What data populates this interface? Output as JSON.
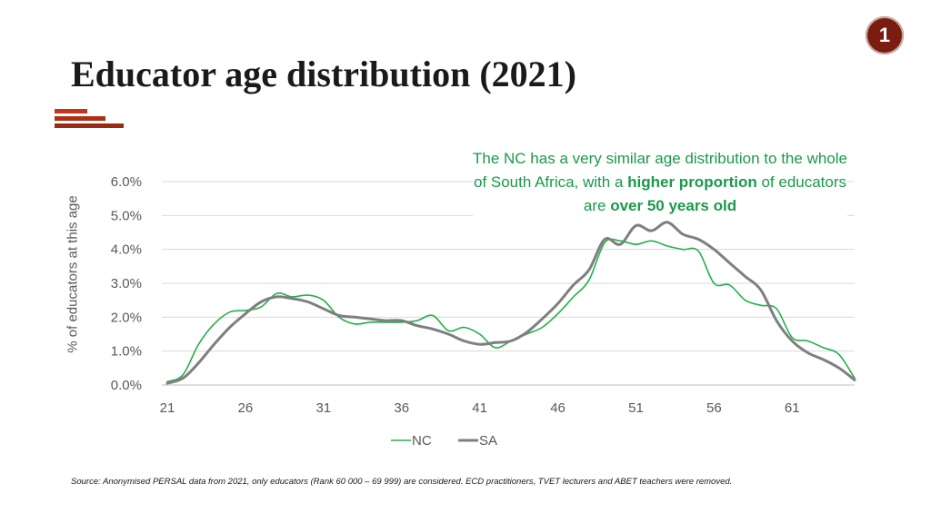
{
  "slide_number": "1",
  "title": "Educator age distribution (2021)",
  "annotation": {
    "part1": "The NC has a very similar age distribution to the whole of South Africa, with a ",
    "bold1": "higher proportion",
    "part2": " of educators are ",
    "bold2": "over 50 years old"
  },
  "source": "Source: Anonymised PERSAL data from 2021, only educators (Rank 60 000 – 69 999) are considered. ECD practitioners, TVET lecturers and ABET teachers were removed.",
  "colors": {
    "nc": "#22b04b",
    "sa": "#7f7f7f",
    "accent": "#a82a10",
    "annotation": "#1a9a4a",
    "grid": "#d9d9d9"
  },
  "chart_data": {
    "type": "line",
    "title": "",
    "xlabel": "",
    "ylabel": "% of educators at this age",
    "ylim": [
      0,
      6
    ],
    "xlim": [
      21,
      65
    ],
    "x_ticks": [
      21,
      26,
      31,
      36,
      41,
      46,
      51,
      56,
      61
    ],
    "y_ticks": [
      0,
      1,
      2,
      3,
      4,
      5,
      6
    ],
    "y_tick_labels": [
      "0.0%",
      "1.0%",
      "2.0%",
      "3.0%",
      "4.0%",
      "5.0%",
      "6.0%"
    ],
    "grid": true,
    "legend": "bottom-center",
    "x": [
      21,
      22,
      23,
      24,
      25,
      26,
      27,
      28,
      29,
      30,
      31,
      32,
      33,
      34,
      35,
      36,
      37,
      38,
      39,
      40,
      41,
      42,
      43,
      44,
      45,
      46,
      47,
      48,
      49,
      50,
      51,
      52,
      53,
      54,
      55,
      56,
      57,
      58,
      59,
      60,
      61,
      62,
      63,
      64,
      65
    ],
    "series": [
      {
        "name": "NC",
        "values": [
          0.1,
          0.3,
          1.2,
          1.8,
          2.15,
          2.2,
          2.3,
          2.7,
          2.6,
          2.65,
          2.5,
          2.0,
          1.8,
          1.85,
          1.85,
          1.85,
          1.9,
          2.05,
          1.6,
          1.7,
          1.5,
          1.1,
          1.3,
          1.5,
          1.7,
          2.1,
          2.6,
          3.1,
          4.2,
          4.25,
          4.15,
          4.25,
          4.1,
          4.0,
          3.95,
          3.0,
          2.95,
          2.5,
          2.35,
          2.25,
          1.4,
          1.3,
          1.1,
          0.9,
          0.2
        ]
      },
      {
        "name": "SA",
        "values": [
          0.05,
          0.2,
          0.65,
          1.2,
          1.7,
          2.1,
          2.45,
          2.6,
          2.55,
          2.45,
          2.25,
          2.05,
          2.0,
          1.95,
          1.9,
          1.9,
          1.75,
          1.65,
          1.5,
          1.3,
          1.2,
          1.25,
          1.3,
          1.55,
          1.95,
          2.4,
          2.95,
          3.4,
          4.3,
          4.15,
          4.7,
          4.55,
          4.8,
          4.45,
          4.3,
          4.0,
          3.6,
          3.2,
          2.8,
          1.9,
          1.3,
          0.95,
          0.75,
          0.5,
          0.15
        ]
      }
    ]
  }
}
